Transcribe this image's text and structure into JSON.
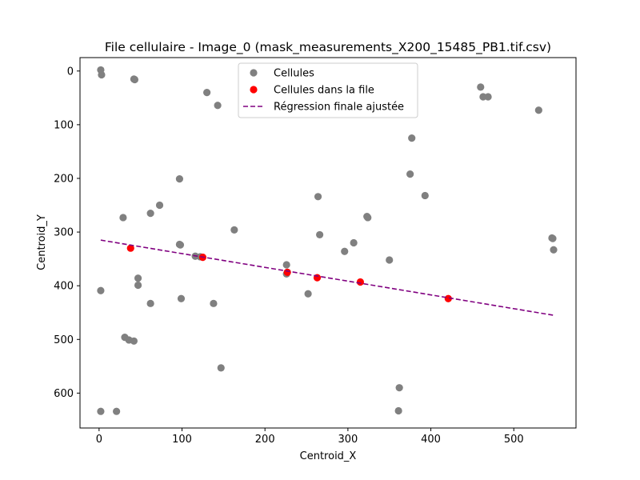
{
  "chart_data": {
    "type": "scatter",
    "title": "File cellulaire - Image_0 (mask_measurements_X200_15485_PB1.tif.csv)",
    "xlabel": "Centroid_X",
    "ylabel": "Centroid_Y",
    "xlim": [
      -23,
      575
    ],
    "ylim": [
      665,
      -25
    ],
    "y_inverted": true,
    "grid": false,
    "x_ticks": [
      0,
      100,
      200,
      300,
      400,
      500
    ],
    "y_ticks": [
      0,
      100,
      200,
      300,
      400,
      500,
      600
    ],
    "legend": {
      "placement": "top-center",
      "entries": [
        "Cellules",
        "Cellules dans la file",
        "Régression finale ajustée"
      ]
    },
    "series": [
      {
        "name": "Cellules",
        "kind": "scatter",
        "color": "#808080",
        "points": [
          [
            2,
            -2
          ],
          [
            3,
            7
          ],
          [
            42,
            15
          ],
          [
            43,
            16
          ],
          [
            130,
            40
          ],
          [
            143,
            64
          ],
          [
            460,
            30
          ],
          [
            463,
            48
          ],
          [
            469,
            48
          ],
          [
            530,
            73
          ],
          [
            377,
            125
          ],
          [
            375,
            192
          ],
          [
            393,
            232
          ],
          [
            97,
            201
          ],
          [
            264,
            234
          ],
          [
            73,
            250
          ],
          [
            62,
            265
          ],
          [
            29,
            273
          ],
          [
            323,
            271
          ],
          [
            324,
            273
          ],
          [
            163,
            296
          ],
          [
            266,
            305
          ],
          [
            307,
            320
          ],
          [
            546,
            311
          ],
          [
            547,
            312
          ],
          [
            548,
            333
          ],
          [
            97,
            323
          ],
          [
            98,
            324
          ],
          [
            296,
            336
          ],
          [
            116,
            345
          ],
          [
            122,
            346
          ],
          [
            226,
            361
          ],
          [
            350,
            352
          ],
          [
            47,
            386
          ],
          [
            47,
            399
          ],
          [
            226,
            378
          ],
          [
            2,
            409
          ],
          [
            252,
            415
          ],
          [
            99,
            424
          ],
          [
            62,
            433
          ],
          [
            138,
            433
          ],
          [
            31,
            496
          ],
          [
            36,
            501
          ],
          [
            42,
            503
          ],
          [
            147,
            553
          ],
          [
            362,
            590
          ],
          [
            361,
            633
          ],
          [
            2,
            634
          ],
          [
            21,
            634
          ]
        ]
      },
      {
        "name": "Cellules dans la file",
        "kind": "scatter",
        "color": "#ff0000",
        "points": [
          [
            38,
            330
          ],
          [
            125,
            347
          ],
          [
            227,
            375
          ],
          [
            263,
            385
          ],
          [
            315,
            393
          ],
          [
            421,
            424
          ]
        ]
      },
      {
        "name": "Régression finale ajustée",
        "kind": "line",
        "style": "dashed",
        "color": "#800080",
        "points": [
          [
            2,
            315
          ],
          [
            548,
            455
          ]
        ]
      }
    ]
  }
}
